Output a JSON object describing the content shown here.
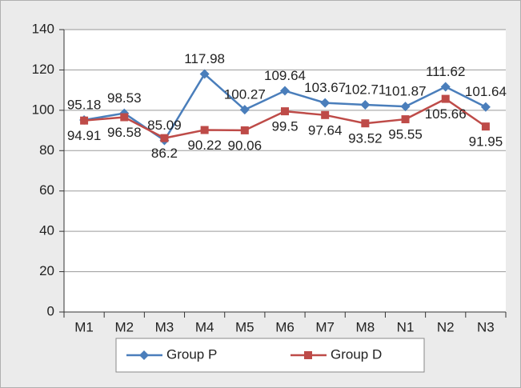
{
  "chart_data": {
    "type": "line",
    "categories": [
      "M1",
      "M2",
      "M3",
      "M4",
      "M5",
      "M6",
      "M7",
      "M8",
      "N1",
      "N2",
      "N3"
    ],
    "series": [
      {
        "name": "Group P",
        "color": "#4a7ebb",
        "marker": "diamond",
        "values": [
          95.18,
          98.53,
          85.09,
          117.98,
          100.27,
          109.64,
          103.67,
          102.71,
          101.87,
          111.62,
          101.64
        ]
      },
      {
        "name": "Group D",
        "color": "#be4b48",
        "marker": "square",
        "values": [
          94.91,
          96.58,
          86.2,
          90.22,
          90.06,
          99.5,
          97.64,
          93.52,
          95.55,
          105.66,
          91.95
        ]
      }
    ],
    "ylim": [
      0,
      140
    ],
    "yticks": [
      0,
      20,
      40,
      60,
      80,
      100,
      120,
      140
    ],
    "grid": true,
    "legend": "bottom"
  }
}
